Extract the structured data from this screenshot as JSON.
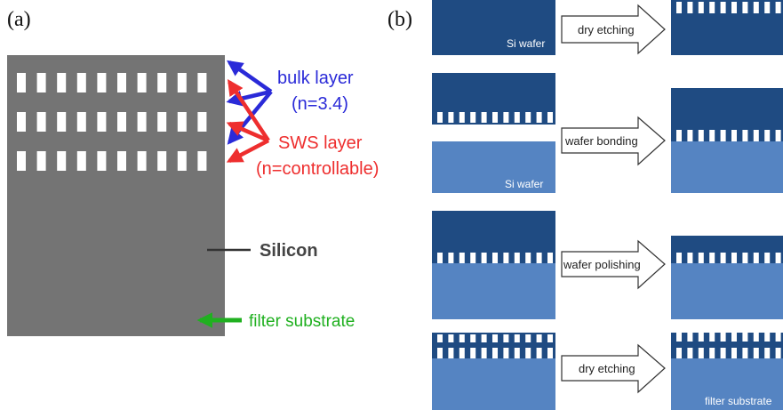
{
  "panel_a": {
    "label": "(a)",
    "bulk_label_line1": "bulk layer",
    "bulk_label_line2": "(n=3.4)",
    "sws_label_line1": "SWS layer",
    "sws_label_line2": "(n=controllable)",
    "silicon_label": "Silicon",
    "substrate_label": "filter substrate",
    "colors": {
      "silicon": "#747474",
      "bulk": "#2a2ad8",
      "sws": "#ee2e2e",
      "substrate_arrow": "#20b020",
      "hole": "#ffffff"
    }
  },
  "panel_b": {
    "label": "(b)",
    "steps": [
      {
        "process": "dry etching",
        "left_caption": "Si wafer",
        "right_caption": ""
      },
      {
        "process": "wafer bonding",
        "left_caption": "Si wafer",
        "right_caption": ""
      },
      {
        "process": "wafer polishing",
        "left_caption": "",
        "right_caption": ""
      },
      {
        "process": "dry etching",
        "left_caption": "",
        "right_caption": "filter substrate"
      }
    ],
    "colors": {
      "dark_wafer": "#1f4b82",
      "light_wafer": "#5584c2",
      "arrow_fill": "#ffffff",
      "arrow_stroke": "#333333"
    }
  }
}
